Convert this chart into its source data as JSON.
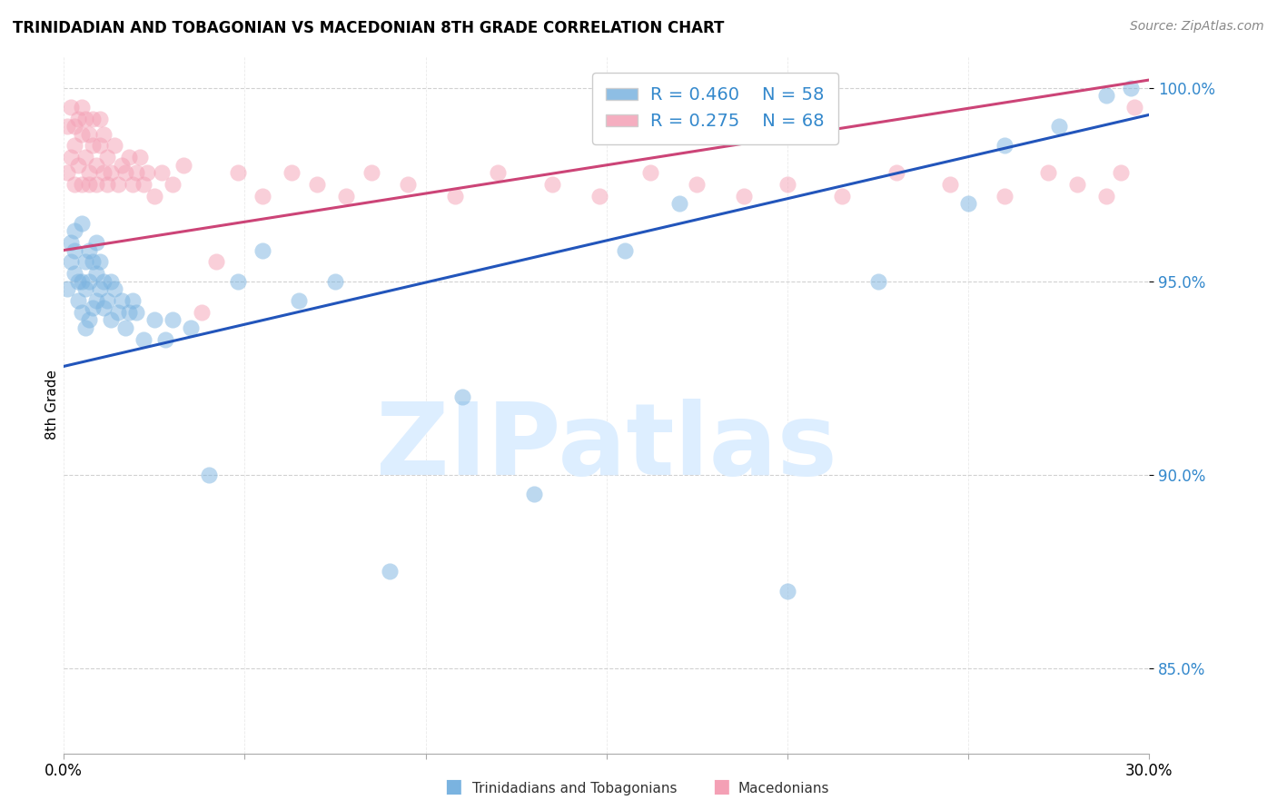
{
  "title": "TRINIDADIAN AND TOBAGONIAN VS MACEDONIAN 8TH GRADE CORRELATION CHART",
  "source": "Source: ZipAtlas.com",
  "ylabel": "8th Grade",
  "xlim": [
    0.0,
    0.3
  ],
  "ylim": [
    0.828,
    1.008
  ],
  "y_ticks": [
    0.85,
    0.9,
    0.95,
    1.0
  ],
  "y_tick_labels": [
    "85.0%",
    "90.0%",
    "95.0%",
    "100.0%"
  ],
  "legend_R_blue": "R = 0.460",
  "legend_N_blue": "N = 58",
  "legend_R_pink": "R = 0.275",
  "legend_N_pink": "N = 68",
  "blue_color": "#7ab3e0",
  "pink_color": "#f4a0b5",
  "trendline_blue_color": "#2255bb",
  "trendline_pink_color": "#cc4477",
  "watermark_text": "ZIPatlas",
  "watermark_color": "#ddeeff",
  "blue_trendline_x": [
    0.0,
    0.3
  ],
  "blue_trendline_y": [
    0.928,
    0.993
  ],
  "pink_trendline_x": [
    0.0,
    0.3
  ],
  "pink_trendline_y": [
    0.958,
    1.002
  ],
  "blue_x": [
    0.001,
    0.002,
    0.002,
    0.003,
    0.003,
    0.003,
    0.004,
    0.004,
    0.005,
    0.005,
    0.005,
    0.006,
    0.006,
    0.006,
    0.007,
    0.007,
    0.007,
    0.008,
    0.008,
    0.009,
    0.009,
    0.009,
    0.01,
    0.01,
    0.011,
    0.011,
    0.012,
    0.013,
    0.013,
    0.014,
    0.015,
    0.016,
    0.017,
    0.018,
    0.019,
    0.02,
    0.022,
    0.025,
    0.028,
    0.03,
    0.035,
    0.04,
    0.048,
    0.055,
    0.065,
    0.075,
    0.09,
    0.11,
    0.13,
    0.155,
    0.17,
    0.2,
    0.225,
    0.25,
    0.26,
    0.275,
    0.288,
    0.295
  ],
  "blue_y": [
    0.948,
    0.955,
    0.96,
    0.952,
    0.958,
    0.963,
    0.945,
    0.95,
    0.942,
    0.95,
    0.965,
    0.938,
    0.948,
    0.955,
    0.94,
    0.95,
    0.958,
    0.943,
    0.955,
    0.945,
    0.952,
    0.96,
    0.948,
    0.955,
    0.943,
    0.95,
    0.945,
    0.94,
    0.95,
    0.948,
    0.942,
    0.945,
    0.938,
    0.942,
    0.945,
    0.942,
    0.935,
    0.94,
    0.935,
    0.94,
    0.938,
    0.9,
    0.95,
    0.958,
    0.945,
    0.95,
    0.875,
    0.92,
    0.895,
    0.958,
    0.97,
    0.87,
    0.95,
    0.97,
    0.985,
    0.99,
    0.998,
    1.0
  ],
  "pink_x": [
    0.001,
    0.001,
    0.002,
    0.002,
    0.003,
    0.003,
    0.003,
    0.004,
    0.004,
    0.005,
    0.005,
    0.005,
    0.006,
    0.006,
    0.007,
    0.007,
    0.007,
    0.008,
    0.008,
    0.009,
    0.009,
    0.01,
    0.01,
    0.011,
    0.011,
    0.012,
    0.012,
    0.013,
    0.014,
    0.015,
    0.016,
    0.017,
    0.018,
    0.019,
    0.02,
    0.021,
    0.022,
    0.023,
    0.025,
    0.027,
    0.03,
    0.033,
    0.038,
    0.042,
    0.048,
    0.055,
    0.063,
    0.07,
    0.078,
    0.085,
    0.095,
    0.108,
    0.12,
    0.135,
    0.148,
    0.162,
    0.175,
    0.188,
    0.2,
    0.215,
    0.23,
    0.245,
    0.26,
    0.272,
    0.28,
    0.288,
    0.292,
    0.296
  ],
  "pink_y": [
    0.978,
    0.99,
    0.982,
    0.995,
    0.985,
    0.99,
    0.975,
    0.98,
    0.992,
    0.975,
    0.988,
    0.995,
    0.982,
    0.992,
    0.978,
    0.988,
    0.975,
    0.985,
    0.992,
    0.98,
    0.975,
    0.985,
    0.992,
    0.978,
    0.988,
    0.975,
    0.982,
    0.978,
    0.985,
    0.975,
    0.98,
    0.978,
    0.982,
    0.975,
    0.978,
    0.982,
    0.975,
    0.978,
    0.972,
    0.978,
    0.975,
    0.98,
    0.942,
    0.955,
    0.978,
    0.972,
    0.978,
    0.975,
    0.972,
    0.978,
    0.975,
    0.972,
    0.978,
    0.975,
    0.972,
    0.978,
    0.975,
    0.972,
    0.975,
    0.972,
    0.978,
    0.975,
    0.972,
    0.978,
    0.975,
    0.972,
    0.978,
    0.995
  ]
}
